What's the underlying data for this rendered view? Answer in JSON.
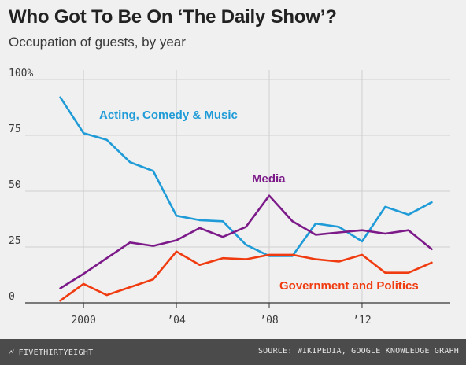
{
  "footer": {
    "brand": "FIVETHIRTYEIGHT",
    "source": "SOURCE: WIKIPEDIA, GOOGLE KNOWLEDGE GRAPH",
    "background": "#4b4b4b"
  },
  "colors": {
    "acting": "#1f9bd7",
    "media": "#7b1a88",
    "government": "#f03b10",
    "grid": "#cfcfcf",
    "baseline": "#333333",
    "background": "#f0f0f0"
  },
  "chart_data": {
    "type": "line",
    "title": "Who Got To Be On ‘The Daily Show’?",
    "subtitle": "Occupation of guests, by year",
    "xlabel": "",
    "ylabel": "",
    "xlim": [
      1998.3,
      2015.8
    ],
    "ylim": [
      0,
      100
    ],
    "yticks": [
      {
        "value": 0,
        "label": "0"
      },
      {
        "value": 25,
        "label": "25"
      },
      {
        "value": 50,
        "label": "50"
      },
      {
        "value": 75,
        "label": "75"
      },
      {
        "value": 100,
        "label": "100%"
      }
    ],
    "xticks": [
      {
        "value": 2000,
        "label": "2000"
      },
      {
        "value": 2004,
        "label": "’04"
      },
      {
        "value": 2008,
        "label": "’08"
      },
      {
        "value": 2012,
        "label": "’12"
      }
    ],
    "grid": true,
    "x": [
      1999,
      2000,
      2001,
      2002,
      2003,
      2004,
      2005,
      2006,
      2007,
      2008,
      2009,
      2010,
      2011,
      2012,
      2013,
      2014,
      2015
    ],
    "series": [
      {
        "name": "Acting, Comedy & Music",
        "color": "#1f9bd7",
        "values": [
          92,
          76,
          73,
          63,
          59,
          39,
          37,
          36.5,
          26,
          21,
          21,
          35.5,
          34,
          27.5,
          43,
          39.5,
          45
        ]
      },
      {
        "name": "Media",
        "color": "#7b1a88",
        "values": [
          6.5,
          13,
          20,
          27,
          25.5,
          28,
          33.5,
          29.5,
          34,
          48,
          36.5,
          30.5,
          31.5,
          32.5,
          31,
          32.5,
          24
        ]
      },
      {
        "name": "Government and Politics",
        "color": "#f03b10",
        "values": [
          1,
          8.5,
          3.5,
          7,
          10.5,
          23,
          17,
          20,
          19.5,
          21.5,
          21.5,
          19.5,
          18.5,
          21.5,
          13.5,
          13.5,
          18
        ]
      }
    ]
  }
}
